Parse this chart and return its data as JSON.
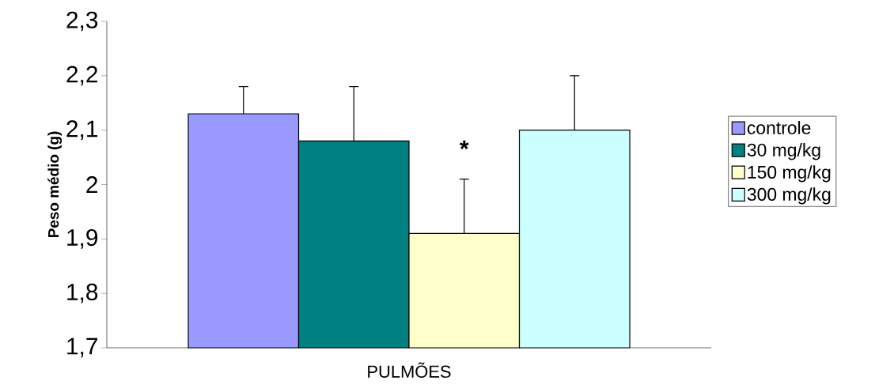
{
  "chart_data": {
    "type": "bar",
    "ylabel": "Peso médio (g)",
    "categories": [
      "PULMÕES"
    ],
    "series": [
      {
        "name": "controle",
        "color": "#9999ff",
        "values": [
          2.13
        ],
        "errors": [
          0.05
        ]
      },
      {
        "name": "30 mg/kg",
        "color": "#008080",
        "values": [
          2.08
        ],
        "errors": [
          0.1
        ]
      },
      {
        "name": "150 mg/kg",
        "color": "#ffffcc",
        "values": [
          1.91
        ],
        "errors": [
          0.1
        ]
      },
      {
        "name": "300 mg/kg",
        "color": "#ccffff",
        "values": [
          2.1
        ],
        "errors": [
          0.1
        ]
      }
    ],
    "ylim": [
      1.7,
      2.3
    ],
    "yticks": [
      {
        "value": 1.7,
        "label": "1,7"
      },
      {
        "value": 1.8,
        "label": "1,8"
      },
      {
        "value": 1.9,
        "label": "1,9"
      },
      2,
      {
        "value": 2.1,
        "label": "2,1"
      },
      {
        "value": 2.2,
        "label": "2,2"
      },
      {
        "value": 2.3,
        "label": "2,3"
      }
    ],
    "annotations": [
      {
        "text": "*",
        "x": "PULMÕES",
        "y": 2.066
      }
    ],
    "legend": "right",
    "grid": false
  }
}
